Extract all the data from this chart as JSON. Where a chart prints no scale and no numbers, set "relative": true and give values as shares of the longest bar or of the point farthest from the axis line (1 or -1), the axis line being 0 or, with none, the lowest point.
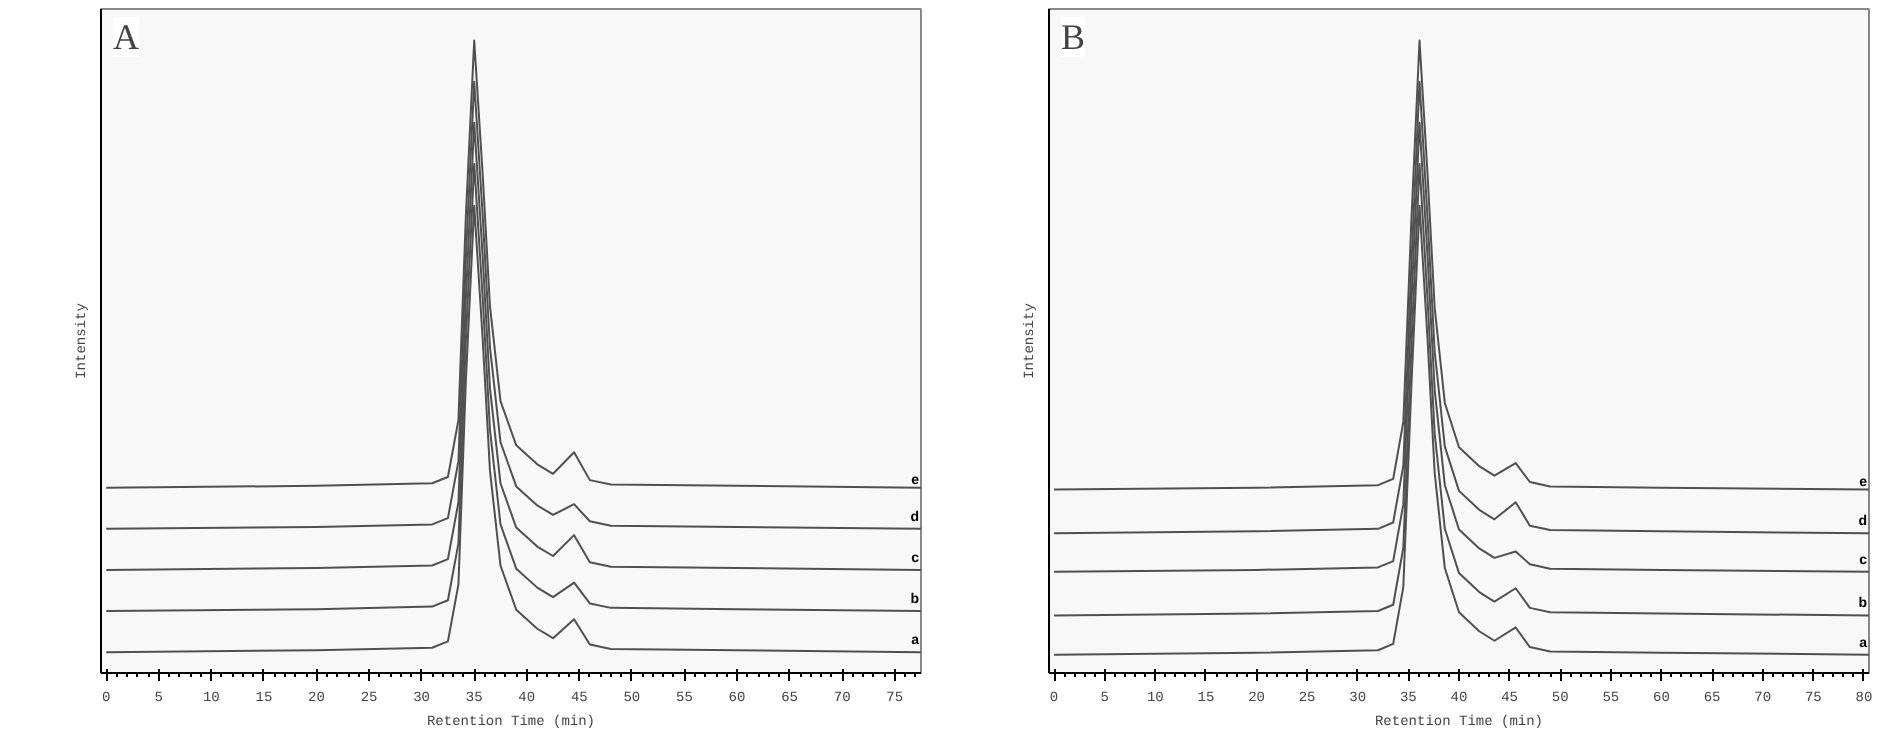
{
  "chart_data": [
    {
      "type": "line",
      "title": "A",
      "xlabel": "Retention Time (min)",
      "ylabel": "Intensity",
      "relative": true,
      "tick_labels": "x",
      "grid": false,
      "marker": "none",
      "line_style": "solid",
      "x": [
        0,
        20,
        31,
        32.5,
        33.5,
        34.2,
        35,
        35.8,
        36.5,
        37.5,
        39,
        41,
        42.5,
        44.5,
        46,
        48,
        60,
        77.5
      ],
      "xlim": [
        -0.5,
        77.5
      ],
      "xticks": [
        0,
        5,
        10,
        15,
        20,
        25,
        30,
        35,
        40,
        45,
        50,
        55,
        60,
        65,
        70,
        75
      ],
      "series": [
        {
          "name": "a",
          "color": "#505050",
          "values": [
            0.033,
            0.036,
            0.04,
            0.05,
            0.14,
            0.46,
            0.739,
            0.53,
            0.32,
            0.17,
            0.1,
            0.07,
            0.055,
            0.085,
            0.045,
            0.038,
            0.036,
            0.033
          ]
        },
        {
          "name": "b",
          "color": "#505050",
          "values": [
            0.098,
            0.101,
            0.105,
            0.115,
            0.205,
            0.525,
            0.805,
            0.595,
            0.385,
            0.235,
            0.165,
            0.135,
            0.12,
            0.143,
            0.11,
            0.103,
            0.101,
            0.098
          ]
        },
        {
          "name": "c",
          "color": "#505050",
          "values": [
            0.163,
            0.166,
            0.17,
            0.18,
            0.27,
            0.59,
            0.87,
            0.66,
            0.45,
            0.3,
            0.23,
            0.2,
            0.185,
            0.218,
            0.175,
            0.168,
            0.166,
            0.163
          ]
        },
        {
          "name": "d",
          "color": "#505050",
          "values": [
            0.228,
            0.231,
            0.235,
            0.245,
            0.335,
            0.655,
            0.935,
            0.725,
            0.515,
            0.365,
            0.295,
            0.265,
            0.25,
            0.267,
            0.24,
            0.233,
            0.231,
            0.228
          ]
        },
        {
          "name": "e",
          "color": "#505050",
          "values": [
            0.293,
            0.296,
            0.3,
            0.31,
            0.4,
            0.72,
            1.0,
            0.79,
            0.58,
            0.43,
            0.36,
            0.33,
            0.315,
            0.349,
            0.305,
            0.298,
            0.296,
            0.293
          ]
        }
      ]
    },
    {
      "type": "line",
      "title": "B",
      "xlabel": "Retention Time (min)",
      "ylabel": "Intensity",
      "relative": true,
      "tick_labels": "x",
      "grid": false,
      "marker": "none",
      "line_style": "solid",
      "x": [
        0,
        20,
        32,
        33.5,
        34.5,
        35.3,
        36.1,
        36.9,
        37.6,
        38.6,
        40,
        42,
        43.5,
        45.6,
        47,
        49,
        60,
        80.5
      ],
      "xlim": [
        -0.5,
        80.5
      ],
      "xticks": [
        0,
        5,
        10,
        15,
        20,
        25,
        30,
        35,
        40,
        45,
        50,
        55,
        60,
        65,
        70,
        75,
        80
      ],
      "series": [
        {
          "name": "a",
          "color": "#505050",
          "values": [
            0.029,
            0.032,
            0.036,
            0.046,
            0.136,
            0.456,
            0.739,
            0.526,
            0.316,
            0.166,
            0.096,
            0.066,
            0.051,
            0.072,
            0.041,
            0.034,
            0.032,
            0.029
          ]
        },
        {
          "name": "b",
          "color": "#505050",
          "values": [
            0.091,
            0.094,
            0.098,
            0.108,
            0.198,
            0.518,
            0.805,
            0.588,
            0.378,
            0.228,
            0.158,
            0.128,
            0.113,
            0.134,
            0.103,
            0.096,
            0.094,
            0.091
          ]
        },
        {
          "name": "c",
          "color": "#505050",
          "values": [
            0.16,
            0.163,
            0.167,
            0.177,
            0.267,
            0.587,
            0.87,
            0.657,
            0.447,
            0.297,
            0.227,
            0.197,
            0.182,
            0.192,
            0.172,
            0.165,
            0.163,
            0.16
          ]
        },
        {
          "name": "d",
          "color": "#505050",
          "values": [
            0.221,
            0.224,
            0.228,
            0.238,
            0.328,
            0.648,
            0.935,
            0.718,
            0.508,
            0.358,
            0.288,
            0.258,
            0.243,
            0.27,
            0.233,
            0.226,
            0.224,
            0.221
          ]
        },
        {
          "name": "e",
          "color": "#505050",
          "values": [
            0.29,
            0.293,
            0.297,
            0.307,
            0.397,
            0.717,
            1.0,
            0.787,
            0.577,
            0.427,
            0.357,
            0.327,
            0.312,
            0.332,
            0.302,
            0.295,
            0.293,
            0.29
          ]
        }
      ]
    }
  ]
}
